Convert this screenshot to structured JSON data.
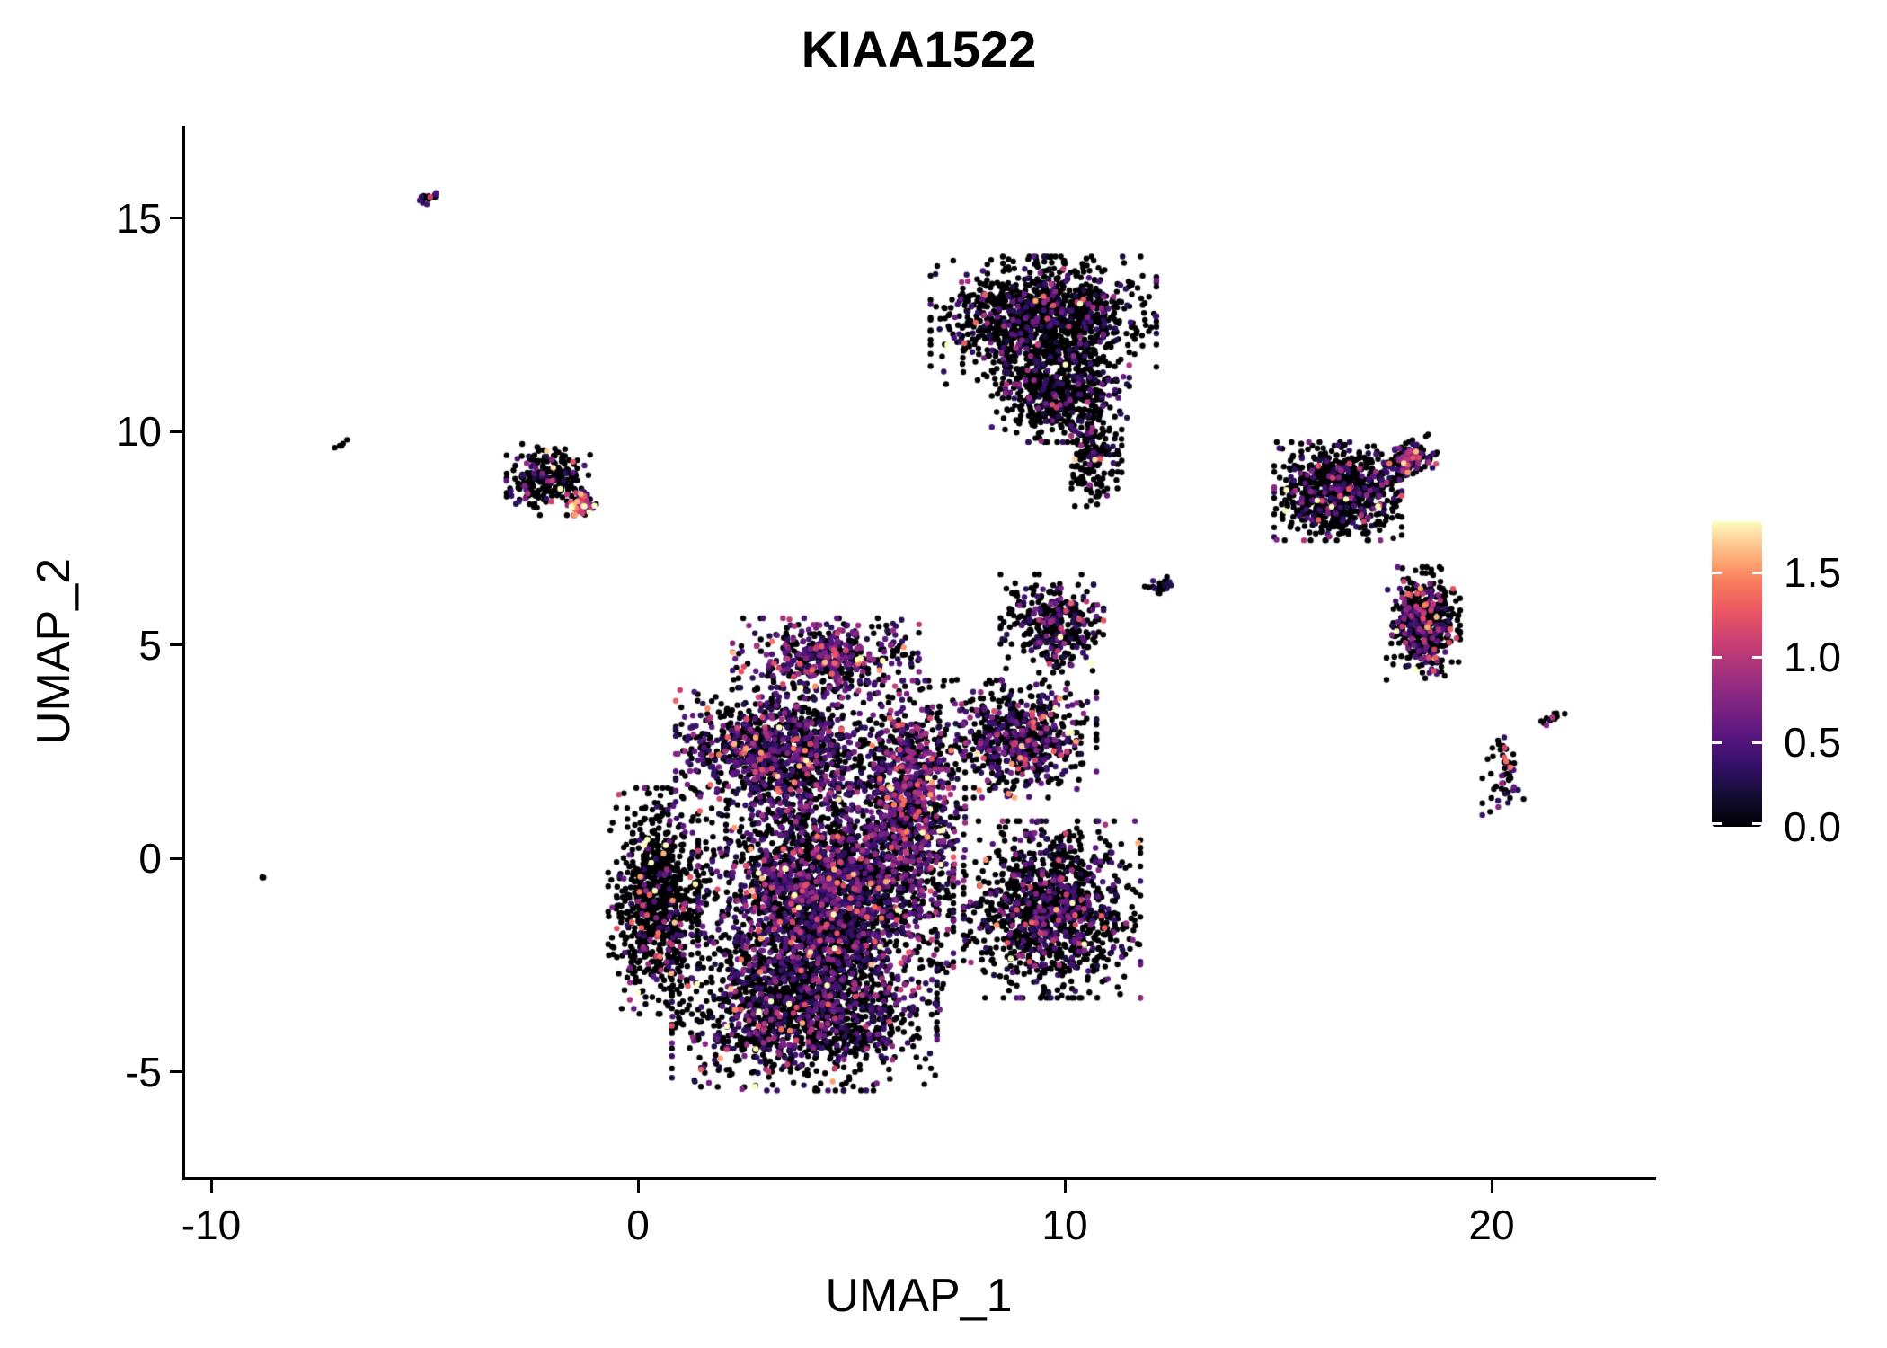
{
  "title": "KIAA1522",
  "chart_data": {
    "type": "scatter",
    "title": "KIAA1522",
    "xlabel": "UMAP_1",
    "ylabel": "UMAP_2",
    "xlim": [
      -10.6,
      23.8
    ],
    "ylim": [
      -7.5,
      17.2
    ],
    "xticks": [
      "-10",
      "0",
      "10",
      "20"
    ],
    "xtick_values": [
      -10,
      0,
      10,
      20
    ],
    "yticks": [
      "15",
      "10",
      "5",
      "0",
      "-5"
    ],
    "ytick_values": [
      15,
      10,
      5,
      0,
      -5
    ],
    "grid": false,
    "background": "#ffffff",
    "point_radius_px": 3.2,
    "seed": 42,
    "legend": {
      "position": "right",
      "ticks": [
        "1.5",
        "1.0",
        "0.5",
        "0.0"
      ],
      "tick_values": [
        1.5,
        1.0,
        0.5,
        0.0
      ],
      "vmin": 0.0,
      "vmax": 1.8
    },
    "colormap": {
      "name": "magma",
      "stops": [
        [
          0.0,
          "#000004"
        ],
        [
          0.1,
          "#120d31"
        ],
        [
          0.2,
          "#331068"
        ],
        [
          0.3,
          "#5a167e"
        ],
        [
          0.4,
          "#7f2482"
        ],
        [
          0.5,
          "#a3307e"
        ],
        [
          0.6,
          "#c83e73"
        ],
        [
          0.7,
          "#e95462"
        ],
        [
          0.8,
          "#f97b5d"
        ],
        [
          0.87,
          "#fea772"
        ],
        [
          0.94,
          "#fdd29c"
        ],
        [
          1.0,
          "#fcfdbf"
        ]
      ]
    },
    "clusters": [
      {
        "name": "main-left-rim",
        "cx": 0.45,
        "cy": -1.0,
        "rx": 1.0,
        "ry": 2.3,
        "n": 850,
        "colored": 0.12,
        "mean": 0.9,
        "rot": 0
      },
      {
        "name": "main-bottom",
        "cx": 3.9,
        "cy": -3.6,
        "rx": 2.7,
        "ry": 1.6,
        "n": 1500,
        "colored": 0.3,
        "mean": 0.6,
        "rot": 0
      },
      {
        "name": "main-center",
        "cx": 4.4,
        "cy": -0.9,
        "rx": 2.6,
        "ry": 2.3,
        "n": 2700,
        "colored": 0.38,
        "mean": 0.62,
        "rot": 0
      },
      {
        "name": "main-upper",
        "cx": 3.3,
        "cy": 2.5,
        "rx": 2.1,
        "ry": 1.3,
        "n": 1150,
        "colored": 0.4,
        "mean": 0.62,
        "rot": 0
      },
      {
        "name": "crown",
        "cx": 4.4,
        "cy": 4.7,
        "rx": 1.9,
        "ry": 0.8,
        "n": 520,
        "colored": 0.5,
        "mean": 0.68,
        "rot": 0
      },
      {
        "name": "mid-band",
        "cx": 6.4,
        "cy": 1.4,
        "rx": 1.1,
        "ry": 2.4,
        "n": 900,
        "colored": 0.5,
        "mean": 0.66,
        "rot": 0
      },
      {
        "name": "right-top-arm",
        "cx": 8.9,
        "cy": 2.8,
        "rx": 1.6,
        "ry": 1.2,
        "n": 650,
        "colored": 0.35,
        "mean": 0.65,
        "rot": 0
      },
      {
        "name": "hook",
        "cx": 9.7,
        "cy": 5.5,
        "rx": 1.05,
        "ry": 1.0,
        "n": 380,
        "colored": 0.22,
        "mean": 0.6,
        "rot": 0
      },
      {
        "name": "hook-trail",
        "cx": 12.3,
        "cy": 6.4,
        "rx": 0.4,
        "ry": 0.15,
        "n": 22,
        "colored": 0.25,
        "mean": 0.6,
        "rot": 15
      },
      {
        "name": "right-lobe",
        "cx": 9.7,
        "cy": -1.2,
        "rx": 1.8,
        "ry": 1.8,
        "n": 1200,
        "colored": 0.26,
        "mean": 0.6,
        "rot": 0
      },
      {
        "name": "top-cluster",
        "cx": 9.5,
        "cy": 12.6,
        "rx": 2.3,
        "ry": 1.3,
        "n": 1250,
        "colored": 0.16,
        "mean": 0.58,
        "rot": 0
      },
      {
        "name": "top-cluster-low",
        "cx": 9.9,
        "cy": 10.9,
        "rx": 1.4,
        "ry": 1.0,
        "n": 520,
        "colored": 0.15,
        "mean": 0.55,
        "rot": 0
      },
      {
        "name": "top-tail",
        "cx": 10.7,
        "cy": 9.4,
        "rx": 0.55,
        "ry": 1.0,
        "n": 170,
        "colored": 0.12,
        "mean": 0.5,
        "rot": 0
      },
      {
        "name": "left-small",
        "cx": -2.1,
        "cy": 8.9,
        "rx": 0.85,
        "ry": 0.75,
        "n": 240,
        "colored": 0.2,
        "mean": 0.6,
        "rot": 0
      },
      {
        "name": "left-small-hot",
        "cx": -1.35,
        "cy": 8.3,
        "rx": 0.32,
        "ry": 0.26,
        "n": 70,
        "colored": 0.85,
        "mean": 1.05,
        "rot": 0
      },
      {
        "name": "tiny-dash",
        "cx": -4.9,
        "cy": 15.45,
        "rx": 0.28,
        "ry": 0.12,
        "n": 16,
        "colored": 0.6,
        "mean": 0.7,
        "rot": 35
      },
      {
        "name": "tiny-pair",
        "cx": -6.95,
        "cy": 9.7,
        "rx": 0.14,
        "ry": 0.1,
        "n": 5,
        "colored": 0.4,
        "mean": 0.6,
        "rot": 0
      },
      {
        "name": "lone-dot",
        "cx": -8.8,
        "cy": -0.45,
        "rx": 0.06,
        "ry": 0.06,
        "n": 2,
        "colored": 0,
        "mean": 0.5,
        "rot": 0
      },
      {
        "name": "right-a",
        "cx": 16.4,
        "cy": 8.6,
        "rx": 1.3,
        "ry": 1.0,
        "n": 820,
        "colored": 0.18,
        "mean": 0.6,
        "rot": 0
      },
      {
        "name": "right-a-arm",
        "cx": 18.1,
        "cy": 9.35,
        "rx": 0.55,
        "ry": 0.35,
        "n": 130,
        "colored": 0.45,
        "mean": 0.85,
        "rot": 20
      },
      {
        "name": "right-b",
        "cx": 18.4,
        "cy": 5.5,
        "rx": 0.75,
        "ry": 1.15,
        "n": 460,
        "colored": 0.3,
        "mean": 0.7,
        "rot": 0
      },
      {
        "name": "small-right",
        "cx": 20.3,
        "cy": 1.9,
        "rx": 0.45,
        "ry": 0.95,
        "n": 55,
        "colored": 0.35,
        "mean": 0.7,
        "rot": 0
      },
      {
        "name": "small-dash",
        "cx": 21.4,
        "cy": 3.3,
        "rx": 0.35,
        "ry": 0.12,
        "n": 13,
        "colored": 0.3,
        "mean": 0.6,
        "rot": 25
      }
    ]
  }
}
